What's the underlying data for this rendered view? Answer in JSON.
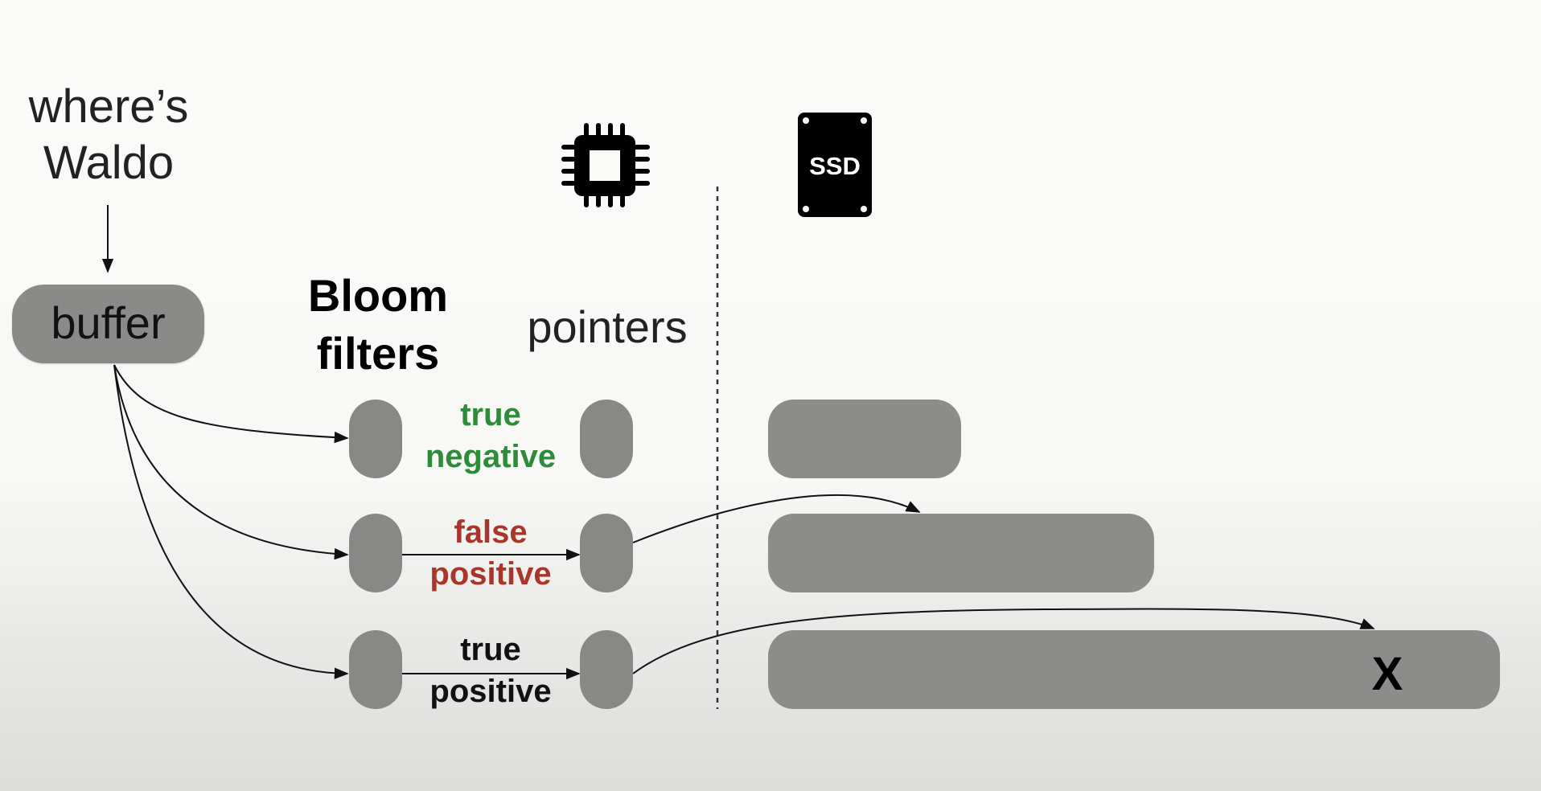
{
  "query": {
    "line1": "where’s",
    "line2": "Waldo"
  },
  "buffer": {
    "label": "buffer"
  },
  "columns": {
    "bloom_line1": "Bloom",
    "bloom_line2": "filters",
    "pointers": "pointers",
    "cpu_icon": "cpu-chip-icon",
    "ssd_icon": "ssd-drive-icon",
    "ssd_label": "SSD"
  },
  "cases": [
    {
      "line1": "true",
      "line2": "negative",
      "color": "#2e8b3a"
    },
    {
      "line1": "false",
      "line2": "positive",
      "color": "#a8362a"
    },
    {
      "line1": "true",
      "line2": "positive",
      "color": "#111111"
    }
  ],
  "miss_marker": "X",
  "colors": {
    "box_fill": "#8a8b89",
    "arrow": "#111111",
    "divider": "#333333"
  }
}
